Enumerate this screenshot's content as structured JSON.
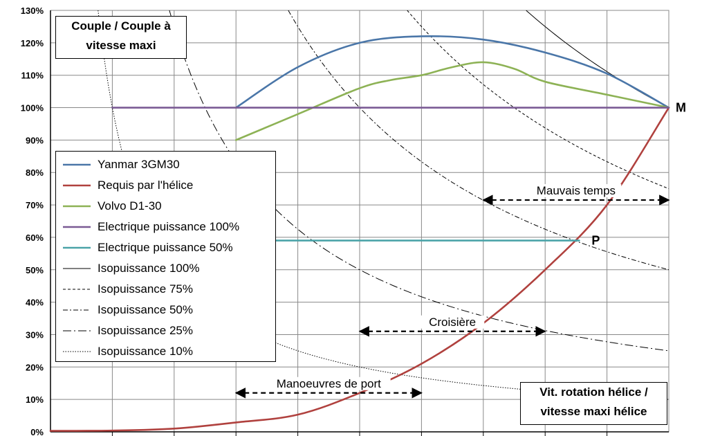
{
  "chart_data": {
    "type": "line",
    "title": "Couple / Couple  à vitesse maxi",
    "xlabel": "Vit. rotation  hélice / vitesse maxi  hélice",
    "ylabel": "Couple / Couple  à vitesse maxi",
    "ylim": [
      0,
      130
    ],
    "xlim": [
      0,
      1
    ],
    "grid": true,
    "yticks": [
      "0%",
      "10%",
      "20%",
      "30%",
      "40%",
      "50%",
      "60%",
      "70%",
      "80%",
      "90%",
      "100%",
      "110%",
      "120%",
      "130%"
    ],
    "legend_position": "left",
    "series": [
      {
        "name": "Yanmar 3GM30",
        "color": "#4a76a8",
        "style": "solid",
        "x": [
          0.3,
          0.4,
          0.5,
          0.6,
          0.7,
          0.8,
          0.9,
          1.0
        ],
        "y": [
          100,
          112.5,
          120,
          122,
          121,
          117,
          110.5,
          100
        ]
      },
      {
        "name": "Requis par l'hélice",
        "color": "#b0413e",
        "style": "solid",
        "x": [
          0,
          0.1,
          0.2,
          0.3,
          0.4,
          0.5,
          0.6,
          0.7,
          0.8,
          0.9,
          1.0
        ],
        "y": [
          0.3,
          0.4,
          1,
          2.9,
          5.3,
          12,
          21,
          33.5,
          50,
          70,
          100
        ]
      },
      {
        "name": "Volvo D1-30",
        "color": "#8db255",
        "style": "solid",
        "x": [
          0.3,
          0.4,
          0.5,
          0.55,
          0.6,
          0.65,
          0.7,
          0.75,
          0.8,
          0.9,
          1.0
        ],
        "y": [
          90,
          98,
          106,
          108.5,
          110,
          112.5,
          114,
          112,
          108,
          104,
          100
        ]
      },
      {
        "name": "Electrique puissance 100%",
        "color": "#7a5a94",
        "style": "solid",
        "x": [
          0.1,
          1.0
        ],
        "y": [
          100,
          100
        ]
      },
      {
        "name": "Electrique puissance 50%",
        "color": "#4aa3a8",
        "style": "solid",
        "x": [
          0.3,
          0.855
        ],
        "y": [
          59,
          59
        ]
      },
      {
        "name": "Isopuissance 100%",
        "color": "#000000",
        "style": "solid",
        "power": 1.0
      },
      {
        "name": "Isopuissance 75%",
        "color": "#000000",
        "style": "dashed",
        "power": 0.75
      },
      {
        "name": "Isopuissance 50%",
        "color": "#000000",
        "style": "dashdot",
        "power": 0.5
      },
      {
        "name": "Isopuissance 25%",
        "color": "#000000",
        "style": "longdashdot",
        "power": 0.25
      },
      {
        "name": "Isopuissance 10%",
        "color": "#000000",
        "style": "dotted",
        "power": 0.1
      }
    ],
    "annotations": [
      {
        "text": "Mauvais temps",
        "x_from": 0.7,
        "x_to": 1.0,
        "y": 71.5
      },
      {
        "text": "Croisière",
        "x_from": 0.5,
        "x_to": 0.8,
        "y": 31
      },
      {
        "text": "Manoeuvres de port",
        "x_from": 0.3,
        "x_to": 0.6,
        "y": 12
      }
    ],
    "points": [
      {
        "label": "M",
        "x": 1.0,
        "y": 100
      },
      {
        "label": "P",
        "x": 0.855,
        "y": 59
      }
    ]
  }
}
